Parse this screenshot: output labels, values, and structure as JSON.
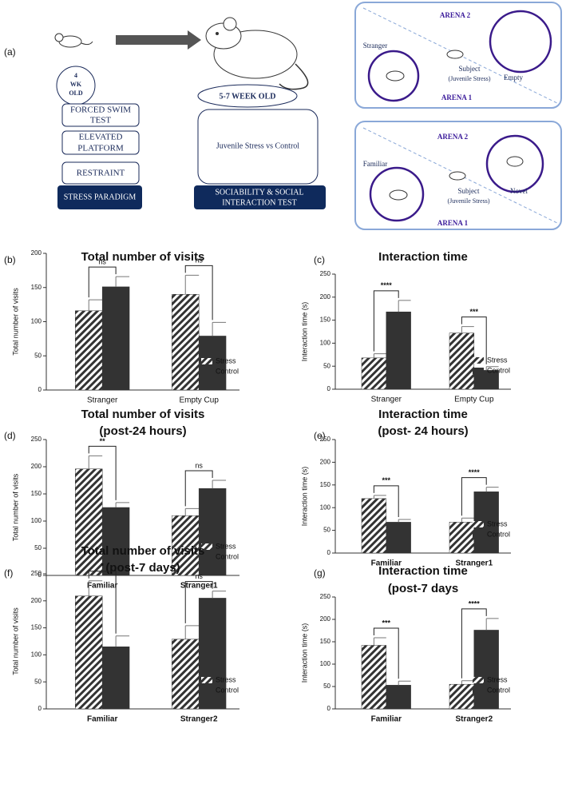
{
  "diagram": {
    "panel_label": "(a)",
    "age": [
      "4",
      "WK",
      "OLD"
    ],
    "boxes": [
      [
        "FORCED SWIM",
        "TEST"
      ],
      [
        "ELEVATED",
        "PLATFORM"
      ],
      [
        "RESTRAINT"
      ]
    ],
    "stress_paradigm": "STRESS PARADIGM",
    "week": "5-7 WEEK OLD",
    "comparison": "Juvenile Stress vs Control",
    "test": [
      "SOCIABILITY & SOCIAL",
      "INTERACTION TEST"
    ],
    "arena_top": {
      "arena2": "ARENA 2",
      "arena1": "ARENA 1",
      "left": "Stranger",
      "right": "Empty",
      "subject": "Subject",
      "subject_note": "(Juvenile Stress)"
    },
    "arena_bottom": {
      "arena2": "ARENA 2",
      "arena1": "ARENA 1",
      "left": "Familiar",
      "right": "Novel",
      "subject": "Subject",
      "subject_note": "(Juvenile Stress)"
    }
  },
  "chart_data": [
    {
      "panel_label": "(b)",
      "type": "bar",
      "title": [
        "Total number of visits"
      ],
      "ylabel": "Total number of visits",
      "categories": [
        "Stranger",
        "Empty Cup"
      ],
      "bold_categories": false,
      "series": [
        {
          "name": "Stress",
          "color": "#333333",
          "hatch": true,
          "values": [
            116,
            140
          ],
          "errors": [
            16,
            28
          ]
        },
        {
          "name": "Control",
          "color": "#333333",
          "hatch": false,
          "values": [
            151,
            79
          ],
          "errors": [
            15,
            20
          ]
        }
      ],
      "annotations": [
        "ns",
        "ns"
      ],
      "ylim": [
        0,
        200
      ],
      "yticks": [
        0,
        50,
        100,
        150,
        200
      ],
      "legend": "lower right"
    },
    {
      "panel_label": "(c)",
      "type": "bar",
      "title": [
        "Interaction time"
      ],
      "ylabel": "Interaction time (s)",
      "categories": [
        "Stranger",
        "Empty Cup"
      ],
      "bold_categories": false,
      "series": [
        {
          "name": "Stress",
          "color": "#333333",
          "hatch": true,
          "values": [
            68,
            122
          ],
          "errors": [
            9,
            14
          ]
        },
        {
          "name": "Control",
          "color": "#333333",
          "hatch": false,
          "values": [
            168,
            41
          ],
          "errors": [
            25,
            8
          ]
        }
      ],
      "annotations": [
        "****",
        "***"
      ],
      "ylim": [
        0,
        250
      ],
      "yticks": [
        0,
        50,
        100,
        150,
        200,
        250
      ],
      "legend": "lower right"
    },
    {
      "panel_label": "(d)",
      "type": "bar",
      "title": [
        "Total number of visits",
        "(post-24 hours)"
      ],
      "ylabel": "Total number of visits",
      "categories": [
        "Familiar",
        "Stranger1"
      ],
      "bold_categories": true,
      "series": [
        {
          "name": "Stress",
          "color": "#333333",
          "hatch": true,
          "values": [
            196,
            110
          ],
          "errors": [
            24,
            13
          ]
        },
        {
          "name": "Control",
          "color": "#333333",
          "hatch": false,
          "values": [
            125,
            160
          ],
          "errors": [
            9,
            15
          ]
        }
      ],
      "annotations": [
        "**",
        "ns"
      ],
      "ylim": [
        0,
        250
      ],
      "yticks": [
        0,
        50,
        100,
        150,
        200,
        250
      ],
      "legend": "lower right"
    },
    {
      "panel_label": "(e)",
      "type": "bar",
      "title": [
        "Interaction time",
        "(post- 24 hours)"
      ],
      "ylabel": "Interaction time (s)",
      "categories": [
        "Familiar",
        "Stranger1"
      ],
      "bold_categories": true,
      "series": [
        {
          "name": "Stress",
          "color": "#333333",
          "hatch": true,
          "values": [
            120,
            68
          ],
          "errors": [
            7,
            9
          ]
        },
        {
          "name": "Control",
          "color": "#333333",
          "hatch": false,
          "values": [
            68,
            135
          ],
          "errors": [
            6,
            10
          ]
        }
      ],
      "annotations": [
        "***",
        "****"
      ],
      "ylim": [
        0,
        250
      ],
      "yticks": [
        0,
        50,
        100,
        150,
        200,
        250
      ],
      "legend": "lower right"
    },
    {
      "panel_label": "(f)",
      "type": "bar",
      "title": [
        "Total number of visits",
        "(post-7 days)"
      ],
      "ylabel": "Total number of visits",
      "categories": [
        "Familiar",
        "Stranger2"
      ],
      "bold_categories": true,
      "series": [
        {
          "name": "Stress",
          "color": "#333333",
          "hatch": true,
          "values": [
            209,
            129
          ],
          "errors": [
            28,
            25
          ]
        },
        {
          "name": "Control",
          "color": "#333333",
          "hatch": false,
          "values": [
            115,
            205
          ],
          "errors": [
            20,
            13
          ]
        }
      ],
      "annotations": [
        "*",
        "ns"
      ],
      "ylim": [
        0,
        250
      ],
      "yticks": [
        0,
        50,
        100,
        150,
        200,
        250
      ],
      "legend": "lower right"
    },
    {
      "panel_label": "(g)",
      "type": "bar",
      "title": [
        "Interaction time",
        "(post-7 days"
      ],
      "ylabel": "Interaction time (s)",
      "categories": [
        "Familiar",
        "Stranger2"
      ],
      "bold_categories": true,
      "series": [
        {
          "name": "Stress",
          "color": "#333333",
          "hatch": true,
          "values": [
            142,
            55
          ],
          "errors": [
            17,
            8
          ]
        },
        {
          "name": "Control",
          "color": "#333333",
          "hatch": false,
          "values": [
            53,
            176
          ],
          "errors": [
            9,
            26
          ]
        }
      ],
      "annotations": [
        "***",
        "****"
      ],
      "ylim": [
        0,
        250
      ],
      "yticks": [
        0,
        50,
        100,
        150,
        200,
        250
      ],
      "legend": "lower right"
    }
  ]
}
